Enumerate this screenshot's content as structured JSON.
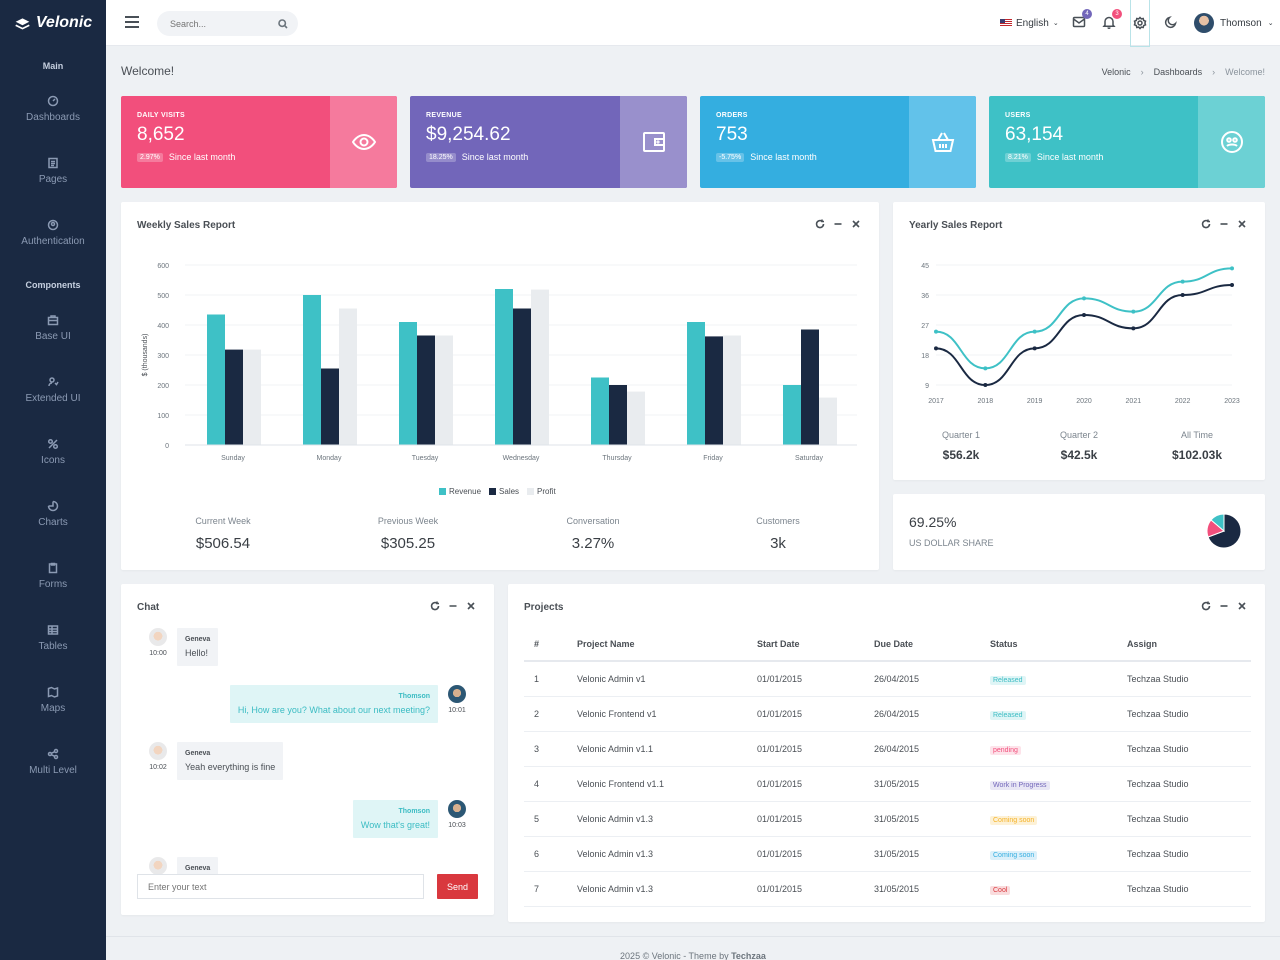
{
  "brand": {
    "name": "Velonic"
  },
  "sidebar": {
    "sections": [
      "Main",
      "Components"
    ],
    "items": [
      {
        "label": "Dashboards",
        "icon": "dashboard-icon"
      },
      {
        "label": "Pages",
        "icon": "pages-icon"
      },
      {
        "label": "Authentication",
        "icon": "authentication-icon"
      },
      {
        "label": "Base UI",
        "icon": "briefcase-icon"
      },
      {
        "label": "Extended UI",
        "icon": "extended-icon"
      },
      {
        "label": "Icons",
        "icon": "icons-icon"
      },
      {
        "label": "Charts",
        "icon": "chart-icon"
      },
      {
        "label": "Forms",
        "icon": "clipboard-icon"
      },
      {
        "label": "Tables",
        "icon": "table-icon"
      },
      {
        "label": "Maps",
        "icon": "map-icon"
      },
      {
        "label": "Multi Level",
        "icon": "share-icon"
      }
    ]
  },
  "topbar": {
    "search_placeholder": "Search...",
    "language": "English",
    "mail_badge": "4",
    "notification_badge": "3",
    "user_name": "Thomson"
  },
  "page": {
    "title": "Welcome!",
    "breadcrumb": [
      "Velonic",
      "Dashboards",
      "Welcome!"
    ]
  },
  "kpis": [
    {
      "label": "DAILY VISITS",
      "value": "8,652",
      "change": "2.97%",
      "since": "Since last month",
      "color": "#f24f7c",
      "side": "#f57a9d",
      "icon": "eye-icon"
    },
    {
      "label": "REVENUE",
      "value": "$9,254.62",
      "change": "18.25%",
      "since": "Since last month",
      "color": "#7266ba",
      "side": "#9990cc",
      "icon": "wallet-icon"
    },
    {
      "label": "ORDERS",
      "value": "753",
      "change": "-5.75%",
      "since": "Since last month",
      "color": "#34aee0",
      "side": "#62c2ea",
      "icon": "basket-icon"
    },
    {
      "label": "USERS",
      "value": "63,154",
      "change": "8.21%",
      "since": "Since last month",
      "color": "#3ec1c6",
      "side": "#6cd1d4",
      "icon": "users-icon"
    }
  ],
  "weekly": {
    "title": "Weekly Sales Report",
    "stats": [
      {
        "label": "Current Week",
        "value": "$506.54"
      },
      {
        "label": "Previous Week",
        "value": "$305.25"
      },
      {
        "label": "Conversation",
        "value": "3.27%"
      },
      {
        "label": "Customers",
        "value": "3k"
      }
    ]
  },
  "yearly": {
    "title": "Yearly Sales Report",
    "stats": [
      {
        "label": "Quarter 1",
        "value": "$56.2k"
      },
      {
        "label": "Quarter 2",
        "value": "$42.5k"
      },
      {
        "label": "All Time",
        "value": "$102.03k"
      }
    ]
  },
  "share": {
    "value": "69.25%",
    "label": "US DOLLAR SHARE"
  },
  "chat": {
    "title": "Chat",
    "messages": [
      {
        "name": "Geneva",
        "time": "10:00",
        "text": "Hello!",
        "side": "left"
      },
      {
        "name": "Thomson",
        "time": "10:01",
        "text": "Hi, How are you? What about our next meeting?",
        "side": "right"
      },
      {
        "name": "Geneva",
        "time": "10:02",
        "text": "Yeah everything is fine",
        "side": "left"
      },
      {
        "name": "Thomson",
        "time": "10:03",
        "text": "Wow that's great!",
        "side": "right"
      },
      {
        "name": "Geneva",
        "time": "",
        "text": "",
        "side": "left"
      }
    ],
    "input_placeholder": "Enter your text",
    "send_label": "Send"
  },
  "projects": {
    "title": "Projects",
    "columns": [
      "#",
      "Project Name",
      "Start Date",
      "Due Date",
      "Status",
      "Assign"
    ],
    "rows": [
      {
        "n": "1",
        "name": "Velonic Admin v1",
        "start": "01/01/2015",
        "due": "26/04/2015",
        "status": "Released",
        "status_color": "#3bbcc3",
        "status_bg": "#dff5f6",
        "assign": "Techzaa Studio"
      },
      {
        "n": "2",
        "name": "Velonic Frontend v1",
        "start": "01/01/2015",
        "due": "26/04/2015",
        "status": "Released",
        "status_color": "#3bbcc3",
        "status_bg": "#dff5f6",
        "assign": "Techzaa Studio"
      },
      {
        "n": "3",
        "name": "Velonic Admin v1.1",
        "start": "01/01/2015",
        "due": "26/04/2015",
        "status": "pending",
        "status_color": "#f24f7c",
        "status_bg": "#fde3ea",
        "assign": "Techzaa Studio"
      },
      {
        "n": "4",
        "name": "Velonic Frontend v1.1",
        "start": "01/01/2015",
        "due": "31/05/2015",
        "status": "Work in Progress",
        "status_color": "#7266ba",
        "status_bg": "#e9e7f5",
        "assign": "Techzaa Studio"
      },
      {
        "n": "5",
        "name": "Velonic Admin v1.3",
        "start": "01/01/2015",
        "due": "31/05/2015",
        "status": "Coming soon",
        "status_color": "#f5b225",
        "status_bg": "#fdf1d6",
        "assign": "Techzaa Studio"
      },
      {
        "n": "6",
        "name": "Velonic Admin v1.3",
        "start": "01/01/2015",
        "due": "31/05/2015",
        "status": "Coming soon",
        "status_color": "#34aee0",
        "status_bg": "#dcf0fa",
        "assign": "Techzaa Studio"
      },
      {
        "n": "7",
        "name": "Velonic Admin v1.3",
        "start": "01/01/2015",
        "due": "31/05/2015",
        "status": "Cool",
        "status_color": "#d9383e",
        "status_bg": "#f9dcdd",
        "assign": "Techzaa Studio"
      }
    ]
  },
  "footer": {
    "text": "2025 © Velonic - Theme by ",
    "brand": "Techzaa"
  },
  "chart_data": [
    {
      "type": "bar",
      "ylabel": "$ (thousands)",
      "ylim": [
        0,
        600
      ],
      "yticks": [
        0,
        100,
        200,
        300,
        400,
        500,
        600
      ],
      "categories": [
        "Sunday",
        "Monday",
        "Tuesday",
        "Wednesday",
        "Thursday",
        "Friday",
        "Saturday"
      ],
      "series": [
        {
          "name": "Revenue",
          "color": "#3ec1c6",
          "values": [
            435,
            500,
            410,
            520,
            225,
            410,
            200
          ]
        },
        {
          "name": "Sales",
          "color": "#1a2942",
          "values": [
            318,
            255,
            365,
            455,
            200,
            362,
            385
          ]
        },
        {
          "name": "Profit",
          "color": "#e9ecef",
          "values": [
            318,
            455,
            365,
            518,
            178,
            365,
            158
          ]
        }
      ],
      "legend": "bottom",
      "grid": true
    },
    {
      "type": "line",
      "x": [
        "2017",
        "2018",
        "2019",
        "2020",
        "2021",
        "2022",
        "2023"
      ],
      "ylim": [
        9,
        45
      ],
      "yticks": [
        9,
        18,
        27,
        36,
        45
      ],
      "series": [
        {
          "color": "#3ec1c6",
          "values": [
            25,
            14,
            25,
            35,
            31,
            40,
            44
          ]
        },
        {
          "color": "#1a2942",
          "values": [
            20,
            9,
            20,
            30,
            26,
            36,
            39
          ]
        }
      ],
      "grid": true
    },
    {
      "type": "pie",
      "values": [
        69.25,
        17,
        13.75
      ],
      "colors": [
        "#1a2942",
        "#f24f7c",
        "#3ec1c6"
      ]
    }
  ]
}
